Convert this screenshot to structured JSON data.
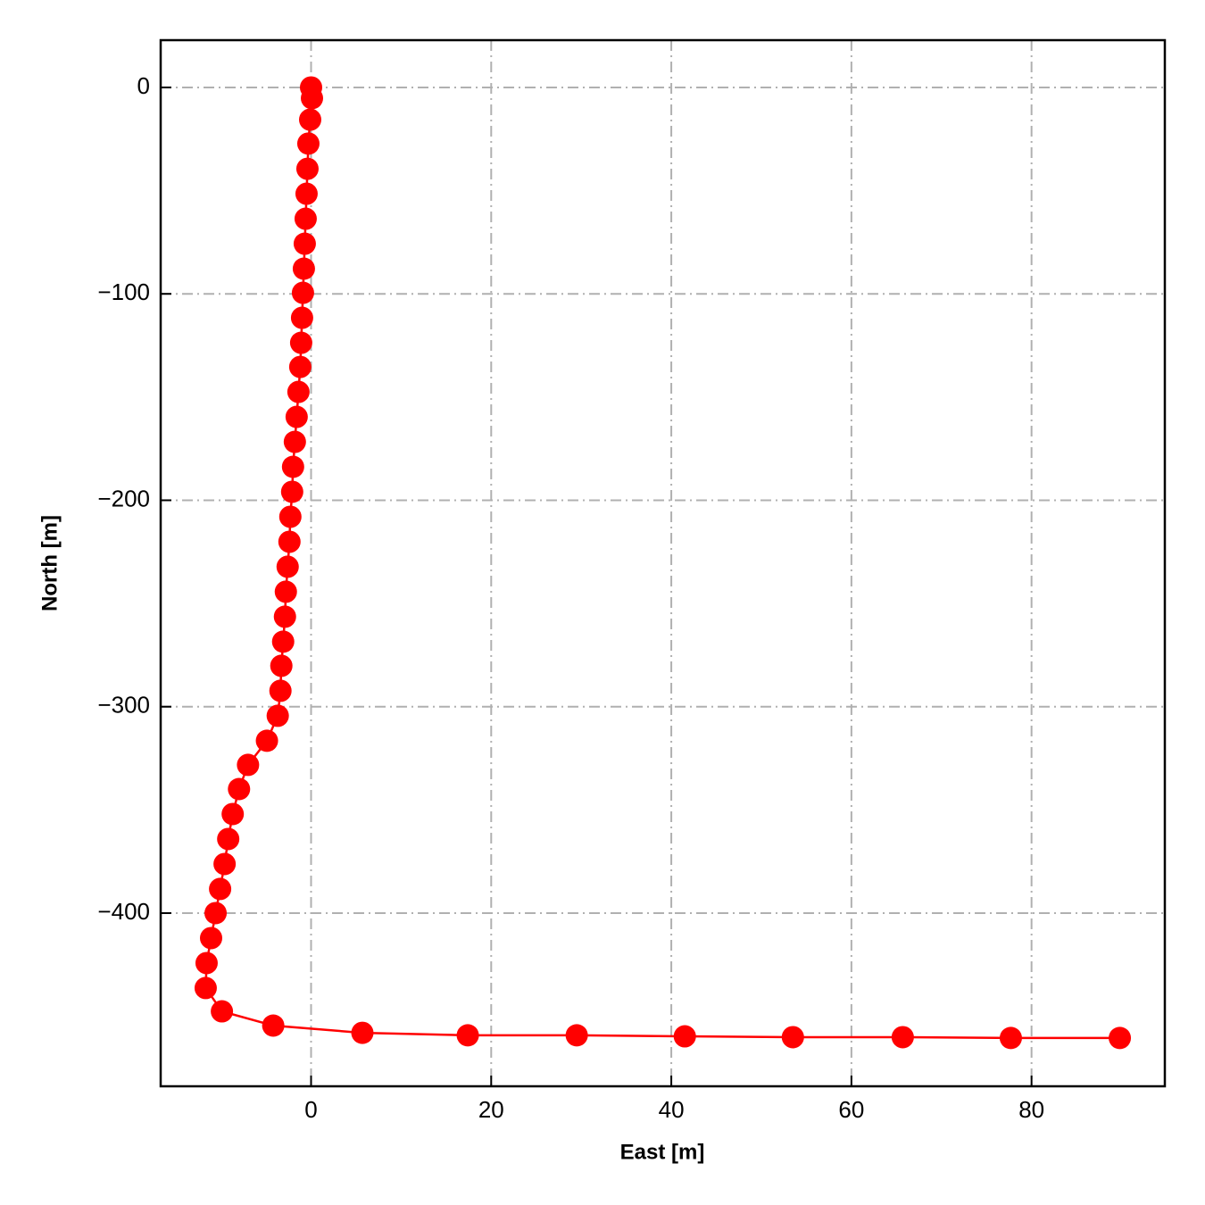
{
  "chart_data": {
    "type": "line",
    "x_label": "East [m]",
    "y_label": "North [m]",
    "x": [
      0,
      0.1,
      -0.1,
      -0.3,
      -0.4,
      -0.5,
      -0.6,
      -0.7,
      -0.8,
      -0.9,
      -1.0,
      -1.1,
      -1.2,
      -1.4,
      -1.6,
      -1.8,
      -2.0,
      -2.1,
      -2.3,
      -2.4,
      -2.6,
      -2.8,
      -2.9,
      -3.1,
      -3.3,
      -3.4,
      -3.7,
      -4.9,
      -7.0,
      -8.0,
      -8.7,
      -9.2,
      -9.6,
      -10.1,
      -10.6,
      -11.1,
      -11.6,
      -11.7,
      -9.9,
      -4.2,
      5.7,
      17.4,
      29.5,
      41.5,
      53.5,
      65.7,
      77.7,
      89.8
    ],
    "series": [
      {
        "color": "#ff0000",
        "values": [
          0,
          -5.2,
          -15.6,
          -27.2,
          -39.4,
          -51.5,
          -63.6,
          -75.7,
          -87.8,
          -99.5,
          -111.6,
          -123.7,
          -135.4,
          -147.5,
          -159.6,
          -171.7,
          -183.8,
          -195.9,
          -208.0,
          -220.1,
          -232.2,
          -244.3,
          -256.4,
          -268.5,
          -280.2,
          -292.3,
          -304.4,
          -316.5,
          -328.2,
          -339.9,
          -352.0,
          -364.1,
          -376.2,
          -388.3,
          -400.0,
          -412.1,
          -424.2,
          -436.3,
          -447.6,
          -454.5,
          -458.0,
          -459.2,
          -459.2,
          -459.7,
          -460.1,
          -460.1,
          -460.5,
          -460.5
        ]
      }
    ],
    "xlim": [
      -16.7,
      94.8
    ],
    "ylim": [
      -483.9,
      22.9
    ],
    "xticks": [
      0,
      20,
      40,
      60,
      80
    ],
    "yticks": [
      0,
      {
        "value": -100,
        "label": "−100"
      },
      {
        "value": -200,
        "label": "−200"
      },
      {
        "value": -300,
        "label": "−300"
      },
      {
        "value": -400,
        "label": "−400"
      }
    ],
    "grid": true
  }
}
